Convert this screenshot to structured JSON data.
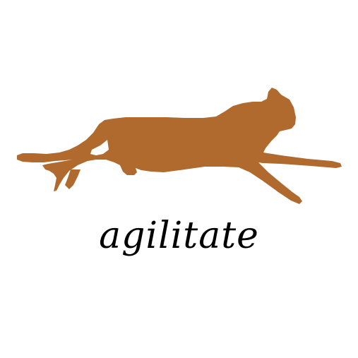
{
  "caption": {
    "word": "agilitate"
  },
  "illustration": {
    "subject": "running-cat-silhouette",
    "color": "#B06A2E"
  },
  "background_color": "#FFFFFF"
}
